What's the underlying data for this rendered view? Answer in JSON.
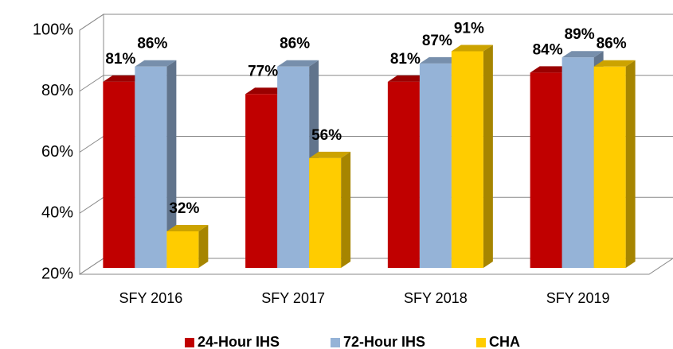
{
  "chart_data": {
    "type": "bar3d",
    "categories": [
      "SFY 2016",
      "SFY 2017",
      "SFY 2018",
      "SFY 2019"
    ],
    "series": [
      {
        "name": "24-Hour IHS",
        "color": "#c00000",
        "values": [
          81,
          77,
          81,
          84
        ],
        "value_labels": [
          "81%",
          "77%",
          "81%",
          "84%"
        ]
      },
      {
        "name": "72-Hour IHS",
        "color": "#95b3d7",
        "values": [
          86,
          86,
          87,
          89
        ],
        "value_labels": [
          "86%",
          "86%",
          "87%",
          "89%"
        ]
      },
      {
        "name": "CHA",
        "color": "#ffcc00",
        "values": [
          32,
          56,
          91,
          86
        ],
        "value_labels": [
          "32%",
          "56%",
          "91%",
          "86%"
        ]
      }
    ],
    "ylim": [
      20,
      100
    ],
    "yticks": [
      {
        "value": 20,
        "label": "20%"
      },
      {
        "value": 40,
        "label": "40%"
      },
      {
        "value": 60,
        "label": "60%"
      },
      {
        "value": 80,
        "label": "80%"
      },
      {
        "value": 100,
        "label": "100%"
      }
    ],
    "grid": true,
    "legend": "bottom"
  }
}
